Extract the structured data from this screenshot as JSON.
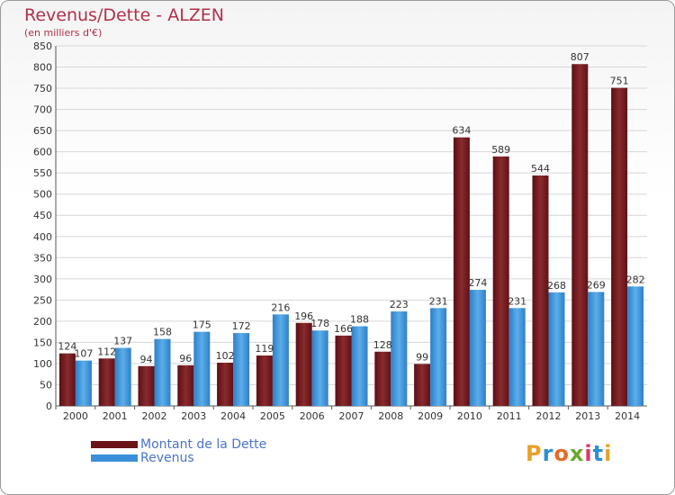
{
  "header": {
    "title": "Revenus/Dette - ALZEN",
    "subtitle": "(en milliers d'€)"
  },
  "legend": {
    "items": [
      {
        "label": "Montant de la Dette",
        "color": "#7a1a1f"
      },
      {
        "label": "Revenus",
        "color": "#3a8fd8"
      }
    ]
  },
  "logo": {
    "letters": [
      "P",
      "r",
      "o",
      "x",
      "i",
      "t",
      "i"
    ],
    "colors": [
      "#e8a12a",
      "#2e8fd1",
      "#e56b2a",
      "#6aa82f",
      "#d93a6a",
      "#2e8fd1",
      "#e8a12a"
    ]
  },
  "chart_data": {
    "type": "bar",
    "title": "Revenus/Dette - ALZEN",
    "subtitle": "(en milliers d'€)",
    "categories": [
      "2000",
      "2001",
      "2002",
      "2003",
      "2004",
      "2005",
      "2006",
      "2007",
      "2008",
      "2009",
      "2010",
      "2011",
      "2012",
      "2013",
      "2014"
    ],
    "series": [
      {
        "name": "Montant de la Dette",
        "color": "#7a1a1f",
        "values": [
          124,
          112,
          94,
          96,
          102,
          119,
          196,
          166,
          128,
          99,
          634,
          589,
          544,
          807,
          751
        ]
      },
      {
        "name": "Revenus",
        "color": "#3a8fd8",
        "values": [
          107,
          137,
          158,
          175,
          172,
          216,
          178,
          188,
          223,
          231,
          274,
          231,
          268,
          269,
          282
        ]
      }
    ],
    "ylim": [
      0,
      850
    ],
    "yticks": [
      0,
      50,
      100,
      150,
      200,
      250,
      300,
      350,
      400,
      450,
      500,
      550,
      600,
      650,
      700,
      750,
      800,
      850
    ],
    "grid": true,
    "legend_position": "bottom-left"
  }
}
